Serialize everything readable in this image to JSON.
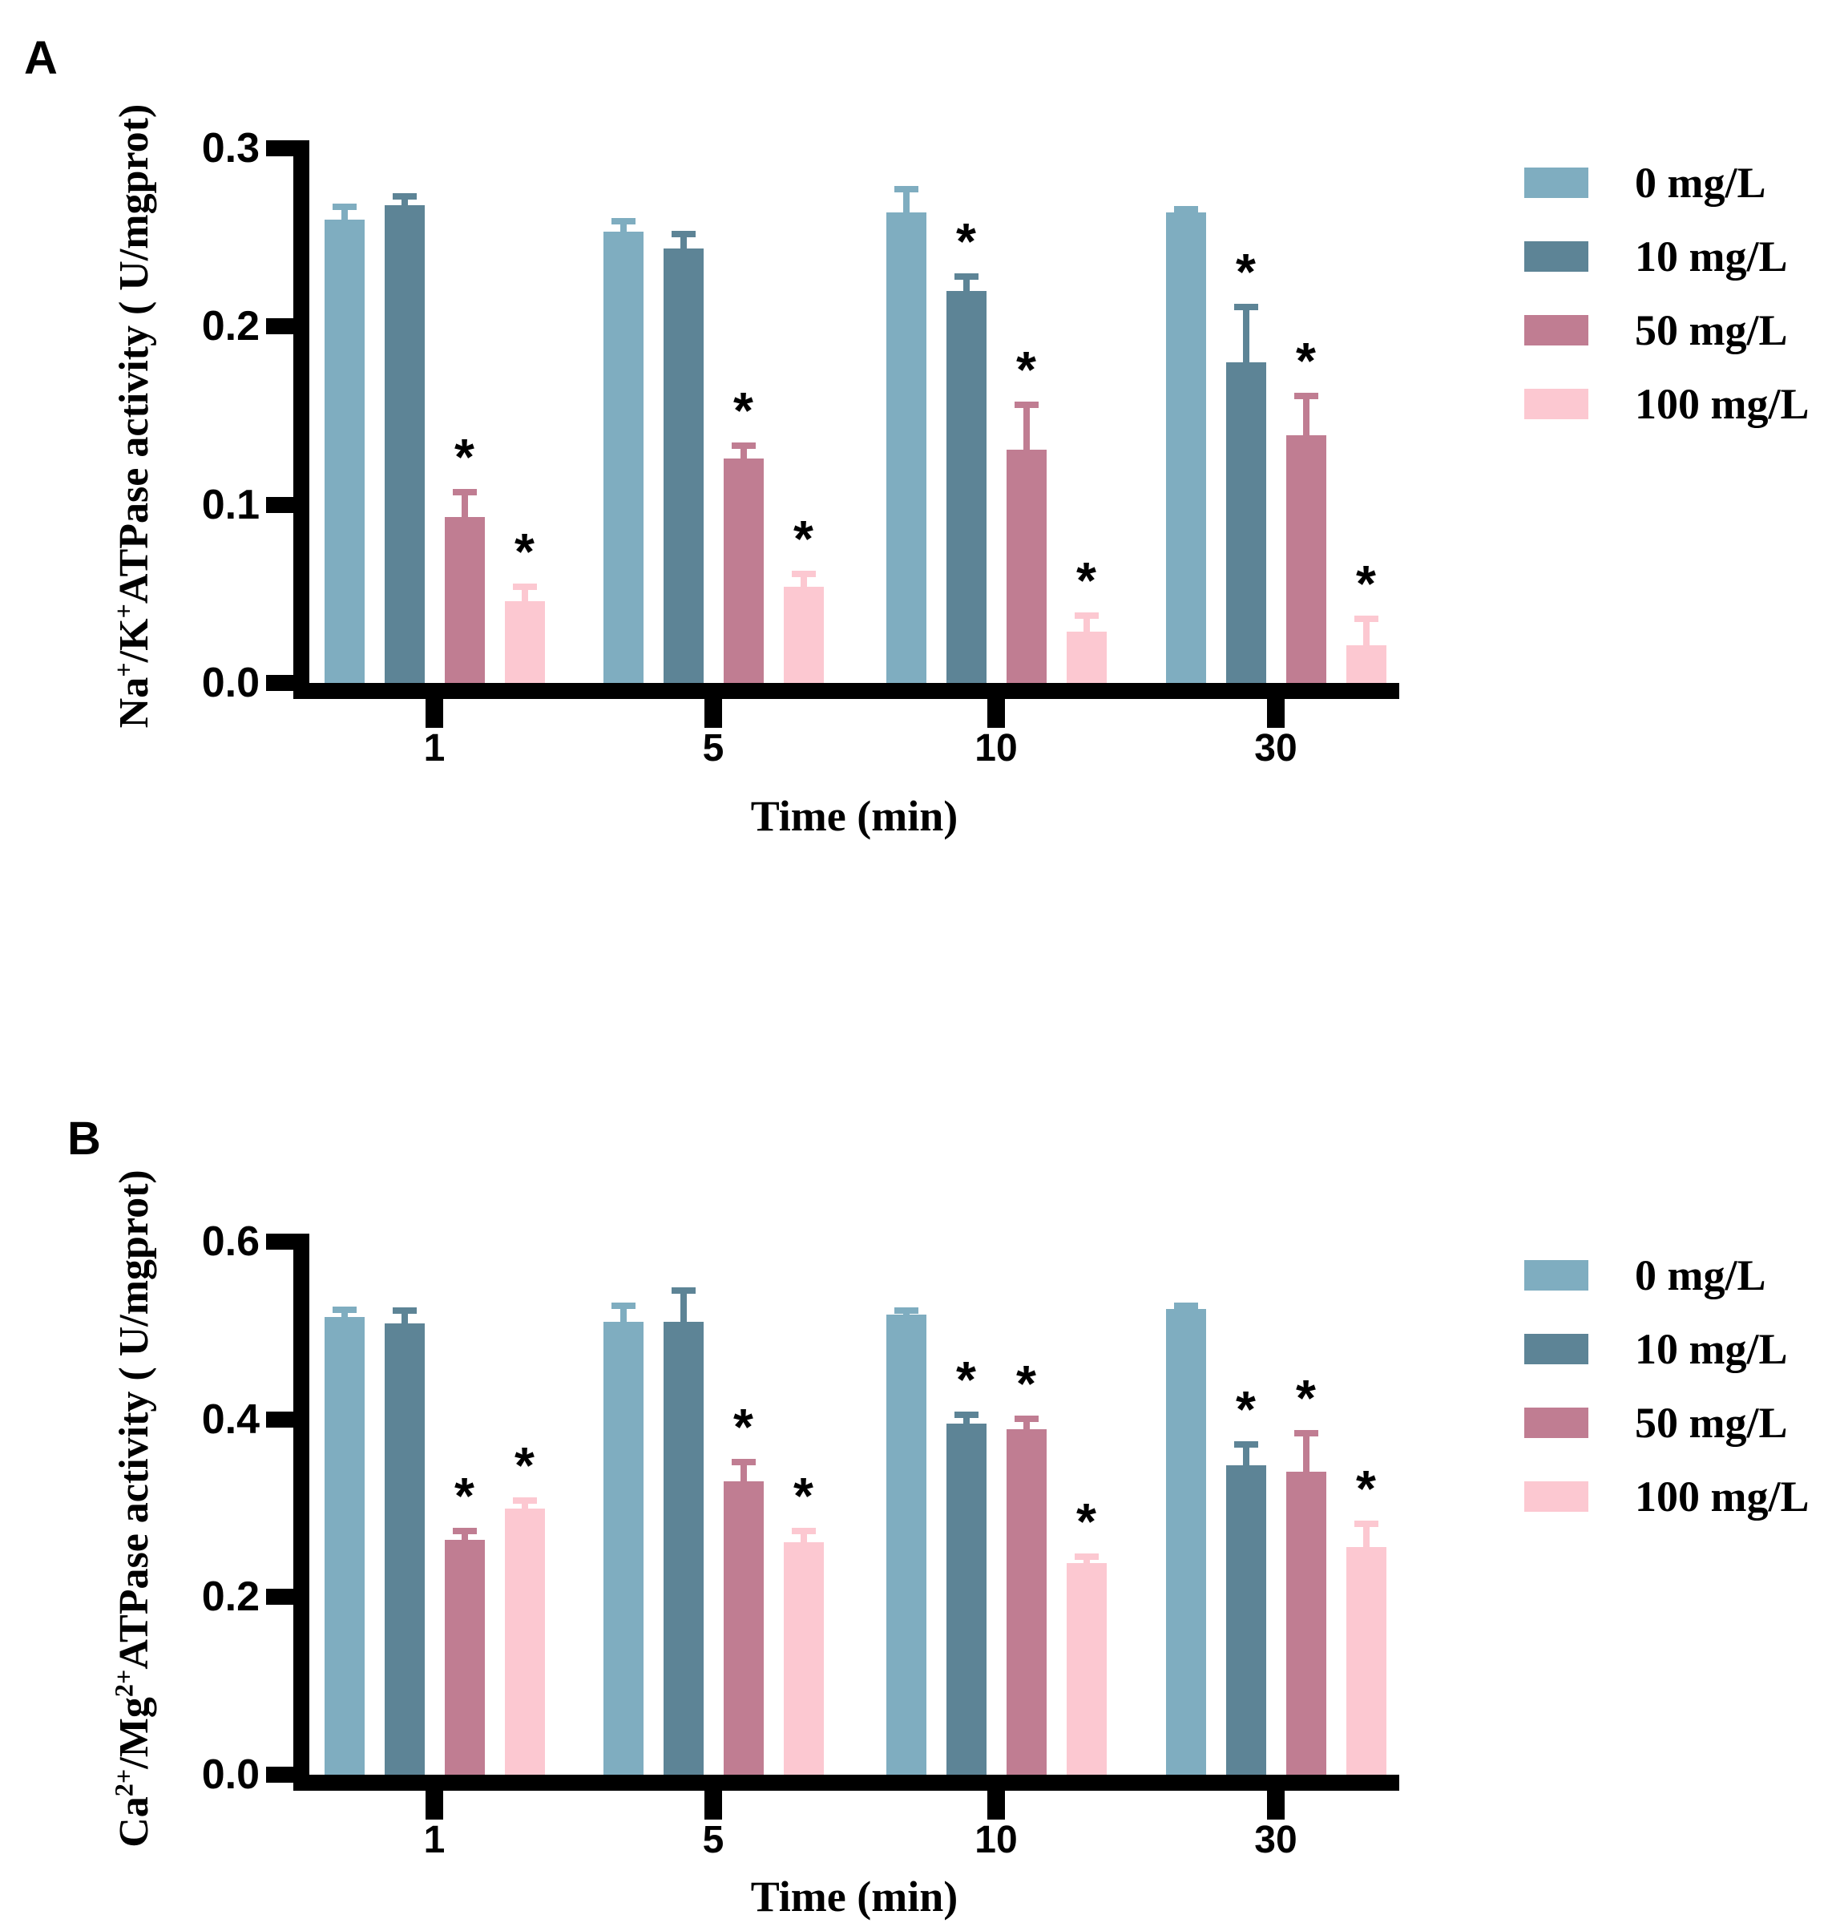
{
  "figure": {
    "background": "#ffffff",
    "sig_marker": "*",
    "axis_color": "#000000"
  },
  "chart_data": [
    {
      "type": "bar",
      "panel_label": "A",
      "title": "",
      "ylabel_parts": [
        {
          "text": "Na"
        },
        {
          "sup": "+"
        },
        {
          "text": "/K"
        },
        {
          "sup": "+"
        },
        {
          "text": "ATPase activity ( U/mgprot)"
        }
      ],
      "ylabel_plain": "Na+/K+ ATPase activity (U/mgprot)",
      "xlabel": "Time (min)",
      "categories": [
        "1",
        "5",
        "10",
        "30"
      ],
      "ylim": [
        0,
        0.3
      ],
      "yticks": [
        {
          "value": 0.0,
          "label": "0.0"
        },
        {
          "value": 0.1,
          "label": "0.1"
        },
        {
          "value": 0.2,
          "label": "0.2"
        },
        {
          "value": 0.3,
          "label": "0.3"
        }
      ],
      "grid": false,
      "legend_position": "right",
      "legend": [
        {
          "label": "0 mg/L",
          "color": "#7fadc0"
        },
        {
          "label": "10 mg/L",
          "color": "#5d8496"
        },
        {
          "label": "50 mg/L",
          "color": "#c07d92"
        },
        {
          "label": "100 mg/L",
          "color": "#fcc8d1"
        }
      ],
      "series": [
        {
          "name": "0 mg/L",
          "color": "#7fadc0",
          "values": [
            0.26,
            0.253,
            0.264,
            0.264
          ],
          "errors": [
            0.007,
            0.006,
            0.013,
            0.002
          ],
          "significant": [
            false,
            false,
            false,
            false
          ]
        },
        {
          "name": "10 mg/L",
          "color": "#5d8496",
          "values": [
            0.268,
            0.244,
            0.22,
            0.18
          ],
          "errors": [
            0.005,
            0.008,
            0.008,
            0.031
          ],
          "significant": [
            false,
            false,
            true,
            true
          ]
        },
        {
          "name": "50 mg/L",
          "color": "#c07d92",
          "values": [
            0.093,
            0.126,
            0.131,
            0.139
          ],
          "errors": [
            0.014,
            0.007,
            0.025,
            0.022
          ],
          "significant": [
            true,
            true,
            true,
            true
          ]
        },
        {
          "name": "100 mg/L",
          "color": "#fcc8d1",
          "values": [
            0.046,
            0.054,
            0.029,
            0.021
          ],
          "errors": [
            0.008,
            0.007,
            0.009,
            0.015
          ],
          "significant": [
            true,
            true,
            true,
            true
          ]
        }
      ]
    },
    {
      "type": "bar",
      "panel_label": "B",
      "title": "",
      "ylabel_parts": [
        {
          "text": "Ca"
        },
        {
          "sup": "2+"
        },
        {
          "text": "/Mg"
        },
        {
          "sup": "2+"
        },
        {
          "text": "ATPase activity ( U/mgprot)"
        }
      ],
      "ylabel_plain": "Ca2+/Mg2+ ATPase activity (U/mgprot)",
      "xlabel": "Time (min)",
      "categories": [
        "1",
        "5",
        "10",
        "30"
      ],
      "ylim": [
        0,
        0.6
      ],
      "yticks": [
        {
          "value": 0.0,
          "label": "0.0"
        },
        {
          "value": 0.2,
          "label": "0.2"
        },
        {
          "value": 0.4,
          "label": "0.4"
        },
        {
          "value": 0.6,
          "label": "0.6"
        }
      ],
      "grid": false,
      "legend_position": "right",
      "legend": [
        {
          "label": "0 mg/L",
          "color": "#7fadc0"
        },
        {
          "label": "10 mg/L",
          "color": "#5d8496"
        },
        {
          "label": "50 mg/L",
          "color": "#c07d92"
        },
        {
          "label": "100 mg/L",
          "color": "#fcc8d1"
        }
      ],
      "series": [
        {
          "name": "0 mg/L",
          "color": "#7fadc0",
          "values": [
            0.515,
            0.51,
            0.518,
            0.524
          ],
          "errors": [
            0.008,
            0.018,
            0.004,
            0.004
          ],
          "significant": [
            false,
            false,
            false,
            false
          ]
        },
        {
          "name": "10 mg/L",
          "color": "#5d8496",
          "values": [
            0.508,
            0.51,
            0.395,
            0.348
          ],
          "errors": [
            0.014,
            0.035,
            0.01,
            0.024
          ],
          "significant": [
            false,
            false,
            true,
            true
          ]
        },
        {
          "name": "50 mg/L",
          "color": "#c07d92",
          "values": [
            0.264,
            0.33,
            0.389,
            0.341
          ],
          "errors": [
            0.01,
            0.022,
            0.012,
            0.043
          ],
          "significant": [
            true,
            true,
            true,
            true
          ]
        },
        {
          "name": "100 mg/L",
          "color": "#fcc8d1",
          "values": [
            0.3,
            0.262,
            0.238,
            0.256
          ],
          "errors": [
            0.009,
            0.012,
            0.007,
            0.026
          ],
          "significant": [
            true,
            true,
            true,
            true
          ]
        }
      ]
    }
  ]
}
